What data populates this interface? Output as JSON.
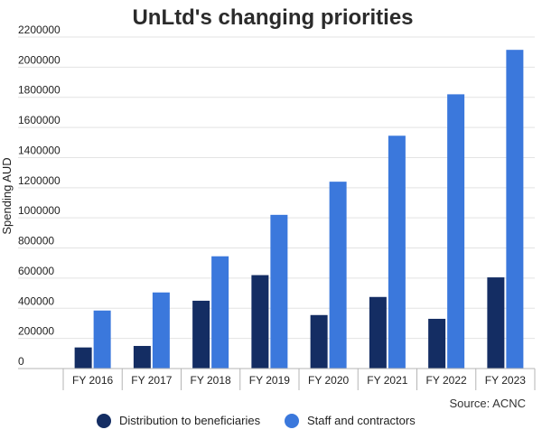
{
  "chart_data": {
    "type": "bar",
    "title": "UnLtd's changing priorities",
    "xlabel": "",
    "ylabel": "Spending AUD",
    "ylim": [
      0,
      2200000
    ],
    "yticks": [
      "0",
      "200000",
      "400000",
      "600000",
      "800000",
      "1000000",
      "1200000",
      "1400000",
      "1600000",
      "1800000",
      "2000000",
      "2200000"
    ],
    "grid": true,
    "legend_position": "bottom",
    "categories": [
      "FY 2016",
      "FY 2017",
      "FY 2018",
      "FY 2019",
      "FY 2020",
      "FY 2021",
      "FY 2022",
      "FY 2023"
    ],
    "series": [
      {
        "name": "Distribution to beneficiaries",
        "color": "#142d63",
        "values": [
          140000,
          150000,
          450000,
          620000,
          355000,
          475000,
          330000,
          605000
        ]
      },
      {
        "name": "Staff and contractors",
        "color": "#3b78dc",
        "values": [
          385000,
          505000,
          745000,
          1020000,
          1240000,
          1545000,
          1820000,
          2115000
        ]
      }
    ],
    "source": "Source: ACNC"
  }
}
